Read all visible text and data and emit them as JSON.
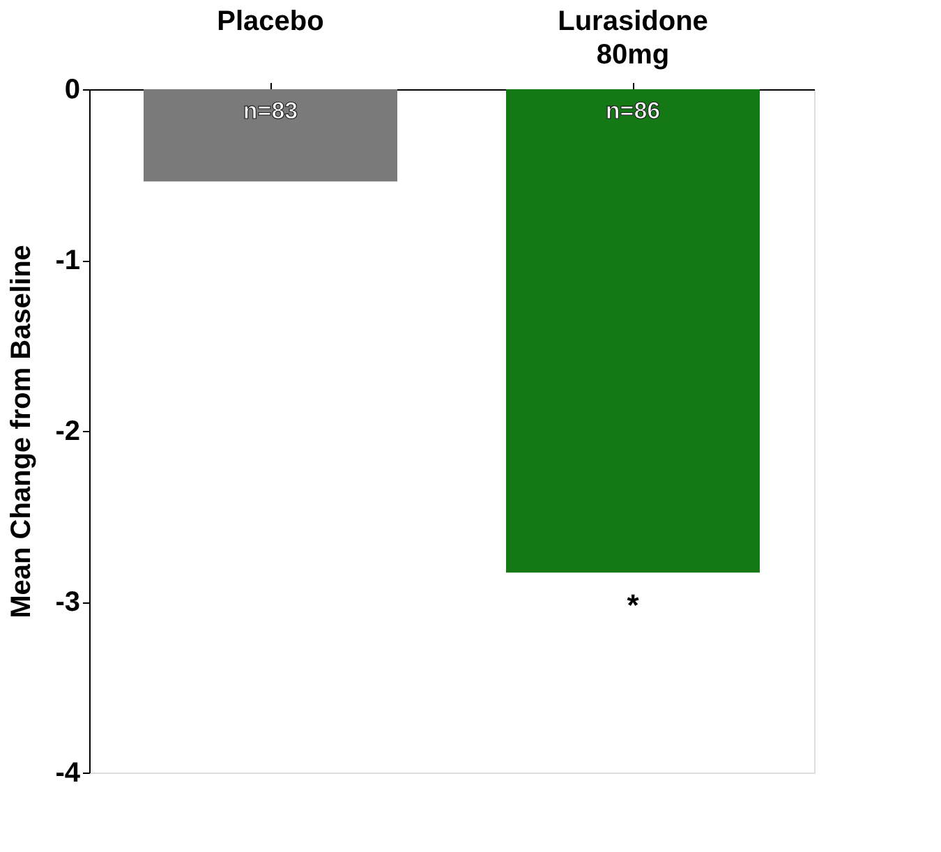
{
  "chart_data": {
    "type": "bar",
    "ylabel": "Mean Change from Baseline",
    "categories": [
      "Placebo",
      "Lurasidone 80mg"
    ],
    "values": [
      -0.54,
      -2.83
    ],
    "colors": [
      "#7a7a7a",
      "#147814"
    ],
    "ylim": [
      -4,
      0
    ],
    "yticks": [
      0,
      -1,
      -2,
      -3,
      -4
    ],
    "grid": false,
    "annotations": [
      "n=83",
      "n=86",
      {
        "text": "*",
        "x": "Lurasidone 80mg",
        "y": -2.83
      }
    ]
  }
}
